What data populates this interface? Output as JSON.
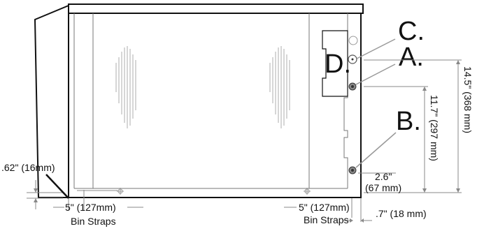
{
  "callouts": {
    "a": "A.",
    "b": "B.",
    "c": "C.",
    "d": "D."
  },
  "dimensions": {
    "total_height": "14.5\" (368 mm)",
    "inner_height": "11.7\" (297 mm)",
    "bottom_offset": ".62\" (16mm)",
    "side_offset_value": "2.6\"",
    "side_offset_metric": "(67 mm)",
    "right_offset": ".7\" (18 mm)",
    "left_strap_distance": "5\" (127mm)",
    "right_strap_distance": "5\" (127mm)",
    "left_strap_label": "Bin Straps",
    "right_strap_label": "Bin Straps"
  }
}
